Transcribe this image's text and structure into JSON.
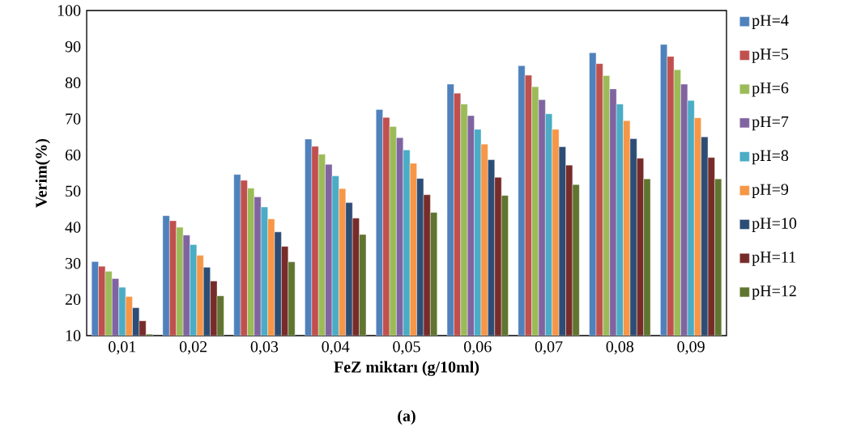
{
  "chart_data": {
    "type": "bar",
    "xlabel": "FeZ miktarı (g/10ml)",
    "ylabel": "Verim(%)",
    "annotations": [
      "(a)"
    ],
    "categories": [
      "0,01",
      "0,02",
      "0,03",
      "0,04",
      "0,05",
      "0,06",
      "0,07",
      "0,08",
      "0,09"
    ],
    "ylim": [
      10,
      100
    ],
    "yticks": [
      10,
      20,
      30,
      40,
      50,
      60,
      70,
      80,
      90,
      100
    ],
    "legend": "right",
    "grid": false,
    "series": [
      {
        "name": "pH=4",
        "color": "#4f81bd",
        "values": [
          30.5,
          43.2,
          54.6,
          64.4,
          72.6,
          79.6,
          84.7,
          88.3,
          90.6
        ]
      },
      {
        "name": "pH=5",
        "color": "#c0504d",
        "values": [
          29.2,
          41.8,
          53.0,
          62.4,
          70.4,
          77.1,
          82.1,
          85.3,
          87.3
        ]
      },
      {
        "name": "pH=6",
        "color": "#9bbb59",
        "values": [
          27.8,
          40.0,
          50.8,
          60.2,
          67.9,
          74.1,
          78.9,
          82.0,
          83.6
        ]
      },
      {
        "name": "pH=7",
        "color": "#8064a2",
        "values": [
          25.8,
          37.8,
          48.4,
          57.4,
          64.8,
          70.9,
          75.3,
          78.3,
          79.6
        ]
      },
      {
        "name": "pH=8",
        "color": "#4bacc6",
        "values": [
          23.4,
          35.2,
          45.6,
          54.2,
          61.4,
          67.1,
          71.4,
          74.1,
          75.1
        ]
      },
      {
        "name": "pH=9",
        "color": "#f79646",
        "values": [
          20.8,
          32.2,
          42.3,
          50.7,
          57.7,
          63.0,
          67.1,
          69.5,
          70.3
        ]
      },
      {
        "name": "pH=10",
        "color": "#2c4d75",
        "values": [
          17.7,
          28.9,
          38.7,
          46.8,
          53.5,
          58.7,
          62.3,
          64.5,
          65.0
        ]
      },
      {
        "name": "pH=11",
        "color": "#772c2a",
        "values": [
          14.1,
          25.1,
          34.7,
          42.5,
          49.0,
          53.8,
          57.2,
          59.1,
          59.3
        ]
      },
      {
        "name": "pH=12",
        "color": "#5f7530",
        "values": [
          10.4,
          21.0,
          30.4,
          38.0,
          44.1,
          48.8,
          51.8,
          53.4,
          53.4
        ]
      }
    ]
  }
}
